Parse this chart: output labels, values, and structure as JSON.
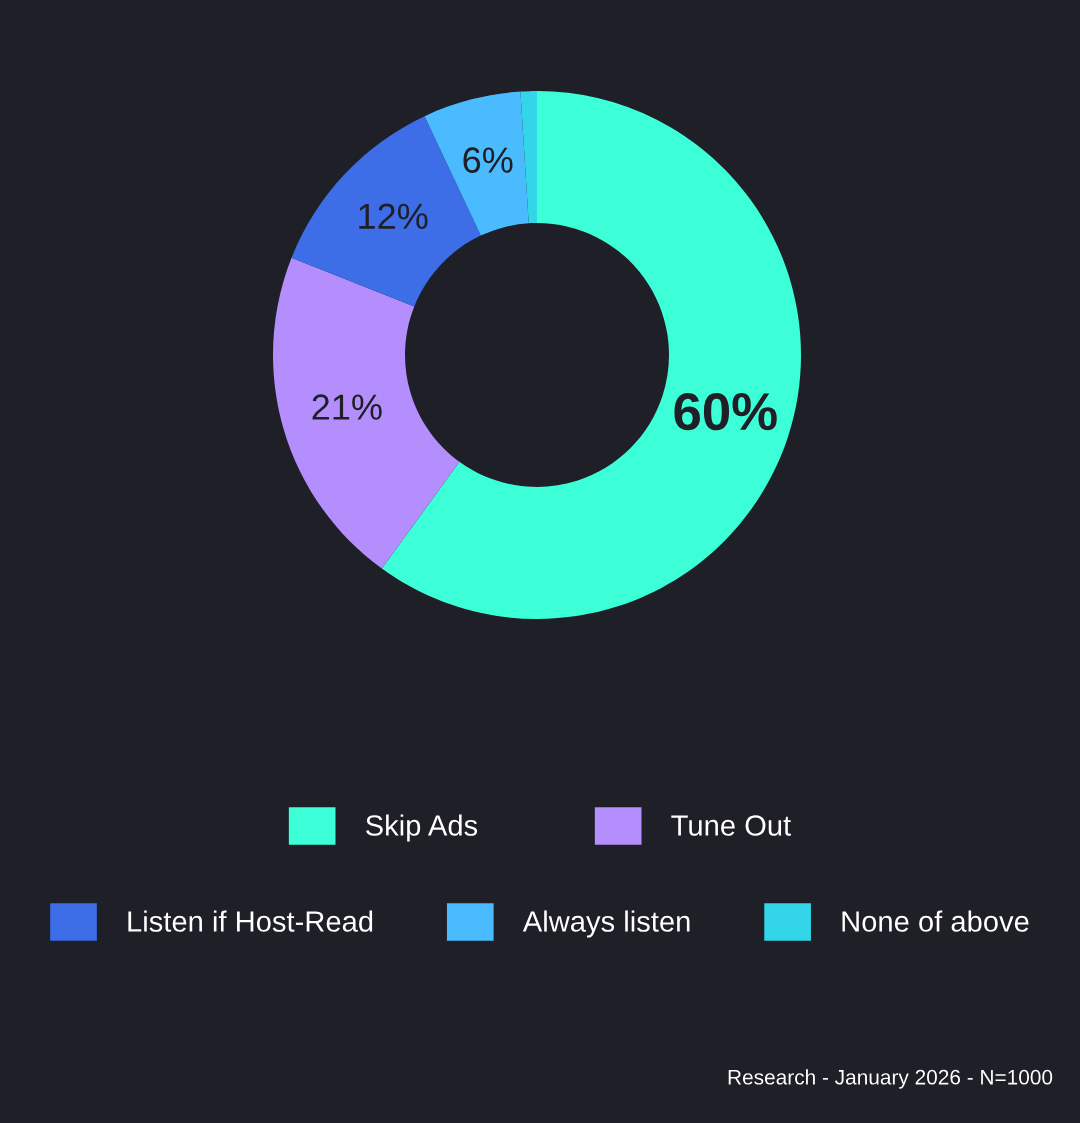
{
  "chart_data": {
    "type": "donut",
    "categories": [
      "Skip Ads",
      "Tune Out",
      "Listen if Host-Read",
      "Always listen",
      "None of above"
    ],
    "values": [
      60,
      21,
      12,
      6,
      1
    ],
    "colors": [
      "#3cffd8",
      "#b48efc",
      "#3d6ee8",
      "#4bbbff",
      "#33d5e8"
    ],
    "value_labels": [
      "60%",
      "21%",
      "12%",
      "6%",
      null
    ],
    "legend": "bottom",
    "annotations": [
      "Research - January 2026 - N=1000"
    ]
  }
}
